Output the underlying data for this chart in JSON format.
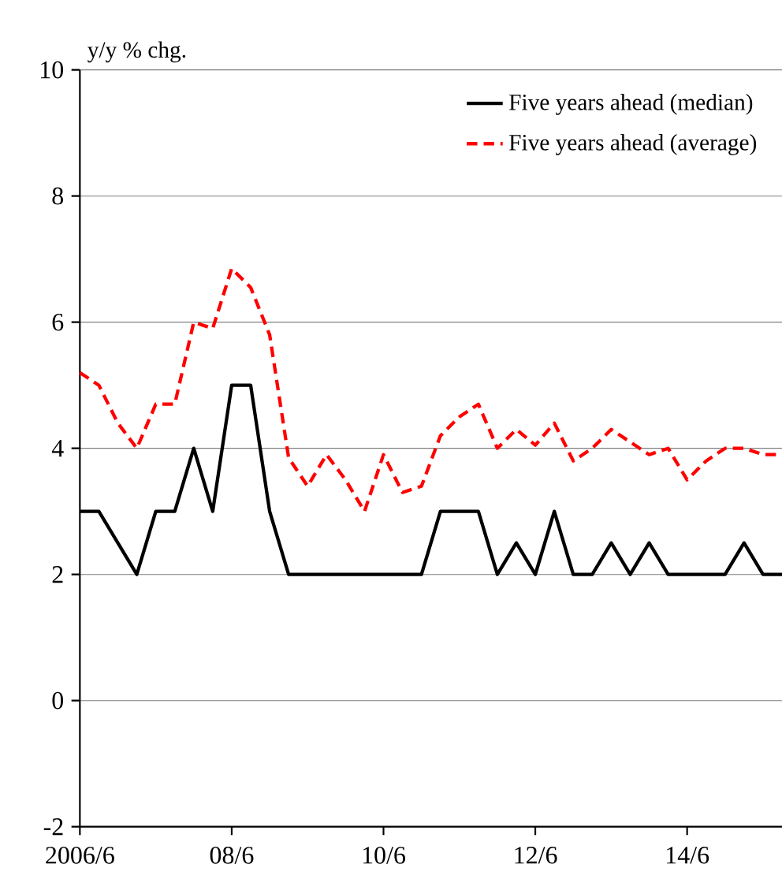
{
  "chart_data": {
    "type": "line",
    "ylabel": "y/y % chg.",
    "categories": [
      "2006/6",
      null,
      null,
      null,
      null,
      null,
      null,
      null,
      "08/6",
      null,
      null,
      null,
      null,
      null,
      null,
      null,
      "10/6",
      null,
      null,
      null,
      null,
      null,
      null,
      null,
      "12/6",
      null,
      null,
      null,
      null,
      null,
      null,
      null,
      "14/6",
      null,
      null,
      null,
      null,
      null
    ],
    "series": [
      {
        "name": "Five years ahead (median)",
        "color": "#000000",
        "line_style": "solid",
        "values": [
          3,
          3,
          2.5,
          2,
          3,
          3,
          4,
          3,
          5,
          5,
          3,
          2,
          2,
          2,
          2,
          2,
          2,
          2,
          2,
          3,
          3,
          3,
          2,
          2.5,
          2,
          3,
          2,
          2,
          2.5,
          2,
          2.5,
          2,
          2,
          2,
          2,
          2.5,
          2,
          2
        ]
      },
      {
        "name": "Five years ahead (average)",
        "color": "#ff0000",
        "line_style": "dashed",
        "values": [
          5.2,
          5.0,
          4.4,
          4.0,
          4.7,
          4.7,
          6.0,
          5.9,
          6.85,
          6.55,
          5.8,
          3.85,
          3.4,
          3.9,
          3.5,
          3.0,
          3.9,
          3.3,
          3.4,
          4.2,
          4.5,
          4.7,
          4.0,
          4.3,
          4.05,
          4.4,
          3.8,
          4.0,
          4.3,
          4.1,
          3.9,
          4.0,
          3.5,
          3.8,
          4.0,
          4.0,
          3.9,
          3.9
        ]
      }
    ],
    "ylim": [
      -2,
      10
    ],
    "yticks": [
      -2,
      0,
      2,
      4,
      6,
      8,
      10
    ],
    "grid": "y",
    "legend": "top right",
    "marker": "none"
  }
}
